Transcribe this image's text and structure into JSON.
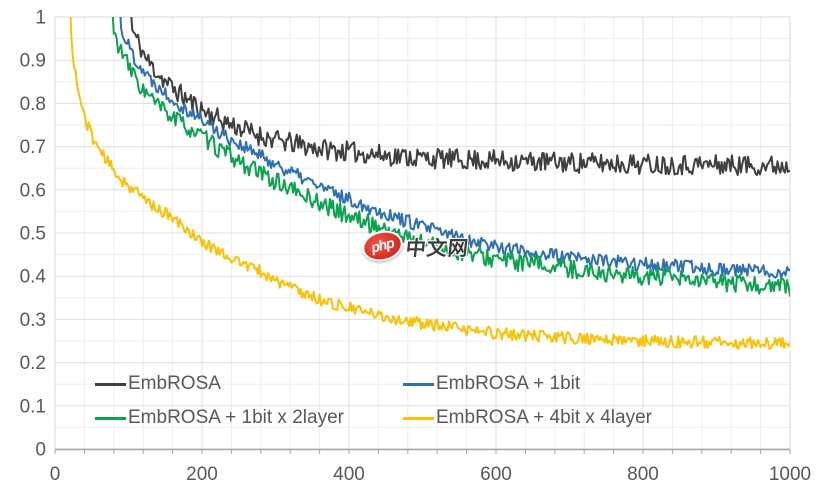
{
  "watermark": {
    "badge_text": "php",
    "text": "中文网",
    "badge_color": "#e23a2d"
  },
  "chart_data": {
    "type": "line",
    "title": "",
    "xlabel": "",
    "ylabel": "",
    "xlim": [
      0,
      1000
    ],
    "ylim": [
      0,
      1
    ],
    "grid": {
      "x_minor_step": 40,
      "x_major_step": 200,
      "y_minor_step": 0.05,
      "y_major_step": 0.1,
      "minor_color": "#eeeeee",
      "major_color": "#dfdfdf",
      "border_color": "#d9d9d9",
      "axis_color": "#a6a6a6"
    },
    "legend_position": "inside-bottom-left",
    "x_ticks": [
      {
        "label": "0",
        "value": 0
      },
      {
        "label": "200",
        "value": 200
      },
      {
        "label": "400",
        "value": 400
      },
      {
        "label": "600",
        "value": 600
      },
      {
        "label": "800",
        "value": 800
      },
      {
        "label": "1000",
        "value": 1000
      }
    ],
    "y_ticks": [
      {
        "label": "1",
        "value": 1
      },
      {
        "label": "0.9",
        "value": 0.9
      },
      {
        "label": "0.8",
        "value": 0.8
      },
      {
        "label": "0.7",
        "value": 0.7
      },
      {
        "label": "0.6",
        "value": 0.6
      },
      {
        "label": "0.5",
        "value": 0.5
      },
      {
        "label": "0.4",
        "value": 0.4
      },
      {
        "label": "0.3",
        "value": 0.3
      },
      {
        "label": "0.2",
        "value": 0.2
      },
      {
        "label": "0.1",
        "value": 0.1
      },
      {
        "label": "0",
        "value": 0
      }
    ],
    "series": [
      {
        "name": "EmbROSA",
        "color": "#3f3f3f",
        "noise_amp": 0.024,
        "seed": 11,
        "anchors": [
          [
            85,
            1.55
          ],
          [
            105,
            0.97
          ],
          [
            125,
            0.9
          ],
          [
            150,
            0.85
          ],
          [
            175,
            0.815
          ],
          [
            200,
            0.785
          ],
          [
            225,
            0.762
          ],
          [
            250,
            0.744
          ],
          [
            275,
            0.728
          ],
          [
            300,
            0.715
          ],
          [
            350,
            0.698
          ],
          [
            400,
            0.688
          ],
          [
            450,
            0.68
          ],
          [
            500,
            0.674
          ],
          [
            550,
            0.67
          ],
          [
            600,
            0.668
          ],
          [
            700,
            0.663
          ],
          [
            800,
            0.66
          ],
          [
            900,
            0.658
          ],
          [
            1000,
            0.656
          ]
        ]
      },
      {
        "name": "EmbROSA + 1bit",
        "color": "#2f70b5",
        "noise_amp": 0.016,
        "seed": 22,
        "anchors": [
          [
            72,
            1.55
          ],
          [
            90,
            0.97
          ],
          [
            110,
            0.9
          ],
          [
            130,
            0.855
          ],
          [
            150,
            0.825
          ],
          [
            175,
            0.79
          ],
          [
            200,
            0.762
          ],
          [
            225,
            0.732
          ],
          [
            250,
            0.706
          ],
          [
            275,
            0.682
          ],
          [
            300,
            0.66
          ],
          [
            325,
            0.637
          ],
          [
            350,
            0.616
          ],
          [
            375,
            0.596
          ],
          [
            400,
            0.578
          ],
          [
            425,
            0.561
          ],
          [
            450,
            0.545
          ],
          [
            475,
            0.53
          ],
          [
            500,
            0.515
          ],
          [
            525,
            0.502
          ],
          [
            550,
            0.49
          ],
          [
            575,
            0.48
          ],
          [
            600,
            0.47
          ],
          [
            625,
            0.462
          ],
          [
            650,
            0.455
          ],
          [
            675,
            0.449
          ],
          [
            700,
            0.443
          ],
          [
            725,
            0.439
          ],
          [
            750,
            0.435
          ],
          [
            775,
            0.431
          ],
          [
            800,
            0.428
          ],
          [
            850,
            0.422
          ],
          [
            900,
            0.417
          ],
          [
            950,
            0.413
          ],
          [
            1000,
            0.41
          ]
        ]
      },
      {
        "name": "EmbROSA + 1bit x 2layer",
        "color": "#0aa34f",
        "noise_amp": 0.021,
        "seed": 33,
        "anchors": [
          [
            62,
            1.55
          ],
          [
            80,
            0.96
          ],
          [
            100,
            0.885
          ],
          [
            120,
            0.83
          ],
          [
            140,
            0.795
          ],
          [
            160,
            0.768
          ],
          [
            180,
            0.745
          ],
          [
            200,
            0.722
          ],
          [
            225,
            0.692
          ],
          [
            250,
            0.666
          ],
          [
            275,
            0.642
          ],
          [
            300,
            0.62
          ],
          [
            325,
            0.598
          ],
          [
            350,
            0.578
          ],
          [
            375,
            0.558
          ],
          [
            400,
            0.54
          ],
          [
            425,
            0.523
          ],
          [
            450,
            0.508
          ],
          [
            475,
            0.492
          ],
          [
            500,
            0.478
          ],
          [
            525,
            0.466
          ],
          [
            550,
            0.455
          ],
          [
            575,
            0.447
          ],
          [
            600,
            0.44
          ],
          [
            625,
            0.434
          ],
          [
            650,
            0.428
          ],
          [
            675,
            0.422
          ],
          [
            700,
            0.417
          ],
          [
            725,
            0.412
          ],
          [
            750,
            0.407
          ],
          [
            775,
            0.403
          ],
          [
            800,
            0.4
          ],
          [
            850,
            0.392
          ],
          [
            900,
            0.386
          ],
          [
            950,
            0.38
          ],
          [
            1000,
            0.374
          ]
        ]
      },
      {
        "name": "EmbROSA + 4bit x 4layer",
        "color": "#ffc000",
        "noise_amp": 0.014,
        "seed": 44,
        "anchors": [
          [
            12,
            1.55
          ],
          [
            22,
            0.95
          ],
          [
            30,
            0.84
          ],
          [
            40,
            0.77
          ],
          [
            50,
            0.725
          ],
          [
            60,
            0.695
          ],
          [
            75,
            0.655
          ],
          [
            90,
            0.625
          ],
          [
            110,
            0.595
          ],
          [
            130,
            0.568
          ],
          [
            150,
            0.545
          ],
          [
            175,
            0.515
          ],
          [
            200,
            0.478
          ],
          [
            225,
            0.458
          ],
          [
            250,
            0.432
          ],
          [
            275,
            0.415
          ],
          [
            300,
            0.39
          ],
          [
            325,
            0.372
          ],
          [
            350,
            0.352
          ],
          [
            375,
            0.338
          ],
          [
            400,
            0.326
          ],
          [
            425,
            0.315
          ],
          [
            450,
            0.306
          ],
          [
            475,
            0.297
          ],
          [
            500,
            0.29
          ],
          [
            525,
            0.284
          ],
          [
            550,
            0.278
          ],
          [
            575,
            0.273
          ],
          [
            600,
            0.268
          ],
          [
            625,
            0.265
          ],
          [
            650,
            0.262
          ],
          [
            675,
            0.259
          ],
          [
            700,
            0.257
          ],
          [
            725,
            0.255
          ],
          [
            750,
            0.253
          ],
          [
            775,
            0.251
          ],
          [
            800,
            0.25
          ],
          [
            850,
            0.248
          ],
          [
            900,
            0.246
          ],
          [
            950,
            0.246
          ],
          [
            1000,
            0.245
          ]
        ]
      }
    ]
  }
}
